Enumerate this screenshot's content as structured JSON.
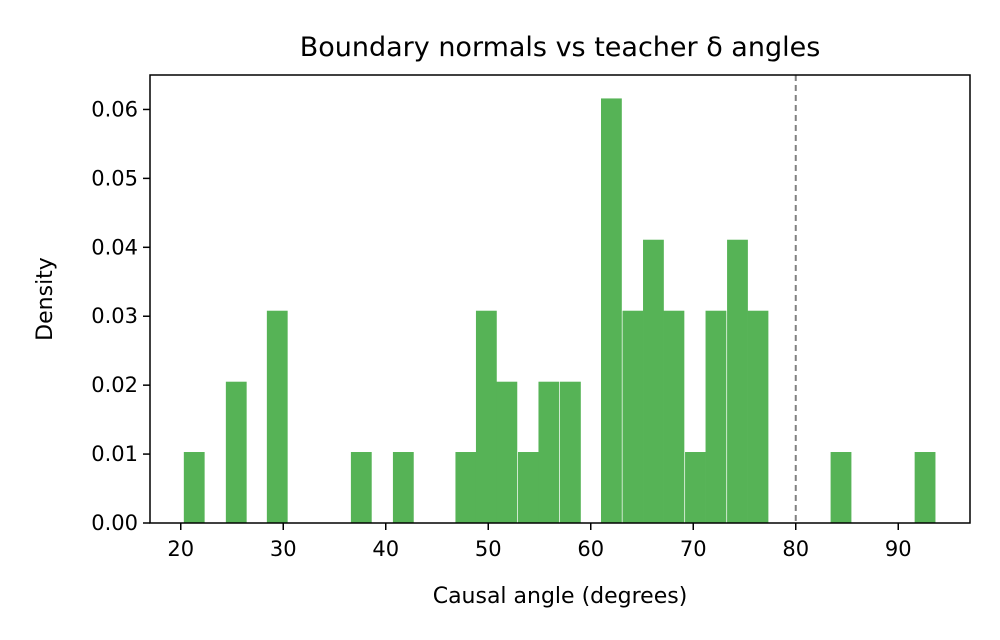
{
  "chart_data": {
    "type": "bar",
    "title": "Boundary normals vs teacher δ angles",
    "xlabel": "Causal angle (degrees)",
    "ylabel": "Density",
    "xlim": [
      17,
      97
    ],
    "ylim": [
      0,
      0.065
    ],
    "xticks": [
      20,
      30,
      40,
      50,
      60,
      70,
      80,
      90
    ],
    "yticks": [
      0.0,
      0.01,
      0.02,
      0.03,
      0.04,
      0.05,
      0.06
    ],
    "ytick_labels": [
      "0.00",
      "0.01",
      "0.02",
      "0.03",
      "0.04",
      "0.05",
      "0.06"
    ],
    "bin_width": 2.03,
    "bins": [
      {
        "x0": 20.3,
        "value": 0.0103
      },
      {
        "x0": 24.4,
        "value": 0.0205
      },
      {
        "x0": 28.4,
        "value": 0.0308
      },
      {
        "x0": 36.6,
        "value": 0.0103
      },
      {
        "x0": 40.7,
        "value": 0.0103
      },
      {
        "x0": 46.8,
        "value": 0.0103
      },
      {
        "x0": 48.8,
        "value": 0.0308
      },
      {
        "x0": 50.8,
        "value": 0.0205
      },
      {
        "x0": 52.9,
        "value": 0.0103
      },
      {
        "x0": 54.9,
        "value": 0.0205
      },
      {
        "x0": 57.0,
        "value": 0.0205
      },
      {
        "x0": 61.0,
        "value": 0.0616
      },
      {
        "x0": 63.1,
        "value": 0.0308
      },
      {
        "x0": 65.1,
        "value": 0.0411
      },
      {
        "x0": 67.1,
        "value": 0.0308
      },
      {
        "x0": 69.2,
        "value": 0.0103
      },
      {
        "x0": 71.2,
        "value": 0.0308
      },
      {
        "x0": 73.3,
        "value": 0.0411
      },
      {
        "x0": 75.3,
        "value": 0.0308
      },
      {
        "x0": 83.4,
        "value": 0.0103
      },
      {
        "x0": 91.6,
        "value": 0.0103
      }
    ],
    "reference_line": {
      "x": 80,
      "style": "dashed",
      "color": "#808080"
    },
    "bar_color": "#56b356",
    "grid": false,
    "legend": "none"
  }
}
